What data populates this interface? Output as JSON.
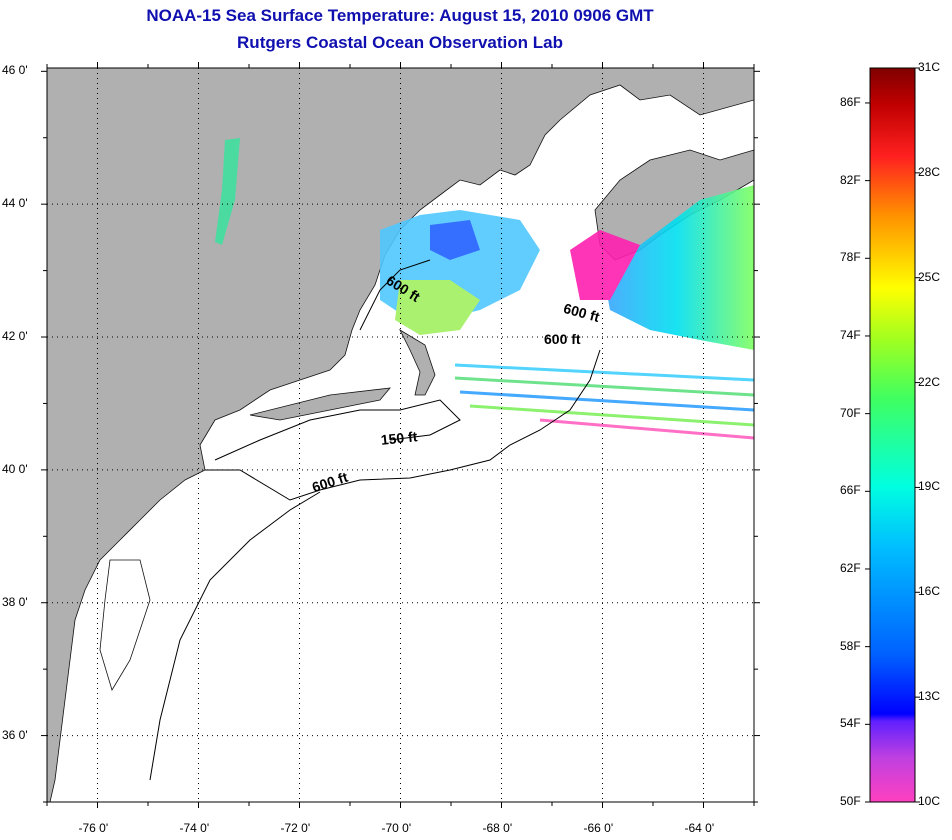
{
  "header": {
    "title": "NOAA-15 Sea Surface Temperature:  August 15, 2010 0906 GMT",
    "subtitle": "Rutgers Coastal Ocean Observation Lab"
  },
  "map": {
    "lat_labels": [
      "46 0'",
      "44 0'",
      "42 0'",
      "40 0'",
      "38 0'",
      "36 0'"
    ],
    "lon_labels": [
      "-76 0'",
      "-74 0'",
      "-72 0'",
      "-70 0'",
      "-68 0'",
      "-66 0'",
      "-64 0'"
    ],
    "lat_range": [
      35,
      46.05
    ],
    "lon_range": [
      -77,
      -63
    ],
    "contour_labels": [
      "600 ft",
      "600 ft",
      "600 ft",
      "150 ft",
      "600 ft"
    ]
  },
  "colorbar": {
    "celsius_labels": [
      "31C",
      "28C",
      "25C",
      "22C",
      "19C",
      "16C",
      "13C",
      "10C"
    ],
    "fahrenheit_labels": [
      "86F",
      "82F",
      "78F",
      "74F",
      "70F",
      "66F",
      "62F",
      "58F",
      "54F",
      "50F"
    ],
    "colors": {
      "land": "#b0b0b0",
      "title": "#1010b0"
    }
  }
}
